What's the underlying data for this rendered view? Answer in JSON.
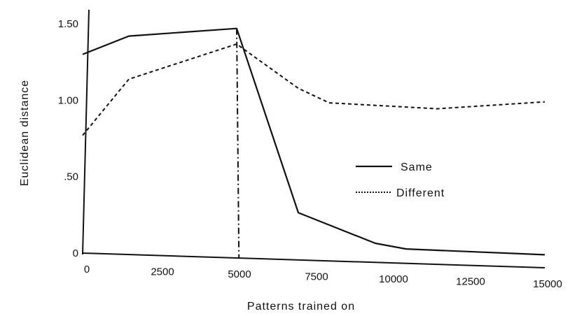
{
  "chart_data": {
    "type": "line",
    "xlabel": "Patterns trained on",
    "ylabel": "Euclidean distance",
    "xlim": [
      0,
      15000
    ],
    "ylim": [
      0,
      1.55
    ],
    "x_ticks": [
      {
        "value": 0,
        "label": "0"
      },
      {
        "value": 2500,
        "label": "2500"
      },
      {
        "value": 5000,
        "label": "5000"
      },
      {
        "value": 7500,
        "label": "7500"
      },
      {
        "value": 10000,
        "label": "10000"
      },
      {
        "value": 12500,
        "label": "12500"
      },
      {
        "value": 15000,
        "label": "15000"
      }
    ],
    "y_ticks": [
      {
        "value": 0,
        "label": "0"
      },
      {
        "value": 0.5,
        "label": ".50"
      },
      {
        "value": 1.0,
        "label": "1.00"
      },
      {
        "value": 1.5,
        "label": "1.50"
      }
    ],
    "series": [
      {
        "name": "Same",
        "style": "solid",
        "points": [
          [
            0,
            1.3
          ],
          [
            1500,
            1.42
          ],
          [
            5000,
            1.47
          ],
          [
            7000,
            0.3
          ],
          [
            9500,
            0.12
          ],
          [
            10500,
            0.09
          ],
          [
            15000,
            0.08
          ]
        ]
      },
      {
        "name": "Different",
        "style": "dashed",
        "points": [
          [
            0,
            0.77
          ],
          [
            1500,
            1.14
          ],
          [
            5000,
            1.37
          ],
          [
            7000,
            1.09
          ],
          [
            8000,
            1.0
          ],
          [
            11500,
            0.97
          ],
          [
            15000,
            1.02
          ]
        ]
      }
    ],
    "marker_line": {
      "style": "dash-dot",
      "x_top": 5000,
      "y_top": 1.47,
      "x_bottom": 4800,
      "y_bottom": 0
    },
    "legend": {
      "placement": "right-middle",
      "items": [
        "Same",
        "Different"
      ]
    },
    "grid": false
  }
}
